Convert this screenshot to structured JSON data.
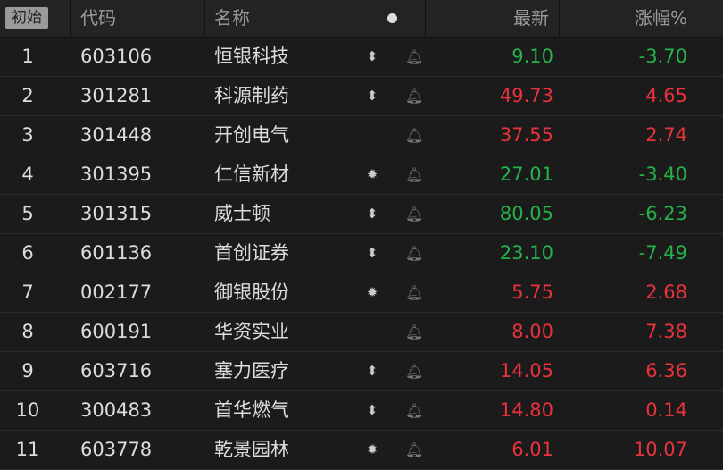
{
  "header": {
    "init_label": "初始",
    "code": "代码",
    "name": "名称",
    "dot_icon": "dot-icon",
    "latest": "最新",
    "change_pct": "涨幅%"
  },
  "colors": {
    "up": "#e8323c",
    "down": "#25b24a"
  },
  "rows": [
    {
      "idx": "1",
      "code": "603106",
      "name": "恒银科技",
      "icon": "updown-icon",
      "price": "9.10",
      "chg": "-3.70",
      "dir": "down"
    },
    {
      "idx": "2",
      "code": "301281",
      "name": "科源制药",
      "icon": "updown-icon",
      "price": "49.73",
      "chg": "4.65",
      "dir": "up"
    },
    {
      "idx": "3",
      "code": "301448",
      "name": "开创电气",
      "icon": "",
      "price": "37.55",
      "chg": "2.74",
      "dir": "up"
    },
    {
      "idx": "4",
      "code": "301395",
      "name": "仁信新材",
      "icon": "sun-icon",
      "price": "27.01",
      "chg": "-3.40",
      "dir": "down"
    },
    {
      "idx": "5",
      "code": "301315",
      "name": "威士顿",
      "icon": "updown-icon",
      "price": "80.05",
      "chg": "-6.23",
      "dir": "down"
    },
    {
      "idx": "6",
      "code": "601136",
      "name": "首创证券",
      "icon": "updown-icon",
      "price": "23.10",
      "chg": "-7.49",
      "dir": "down"
    },
    {
      "idx": "7",
      "code": "002177",
      "name": "御银股份",
      "icon": "sun-icon",
      "price": "5.75",
      "chg": "2.68",
      "dir": "up"
    },
    {
      "idx": "8",
      "code": "600191",
      "name": "华资实业",
      "icon": "",
      "price": "8.00",
      "chg": "7.38",
      "dir": "up"
    },
    {
      "idx": "9",
      "code": "603716",
      "name": "塞力医疗",
      "icon": "updown-icon",
      "price": "14.05",
      "chg": "6.36",
      "dir": "up"
    },
    {
      "idx": "10",
      "code": "300483",
      "name": "首华燃气",
      "icon": "updown-icon",
      "price": "14.80",
      "chg": "0.14",
      "dir": "up"
    },
    {
      "idx": "11",
      "code": "603778",
      "name": "乾景园林",
      "icon": "sun-icon",
      "price": "6.01",
      "chg": "10.07",
      "dir": "up"
    }
  ]
}
